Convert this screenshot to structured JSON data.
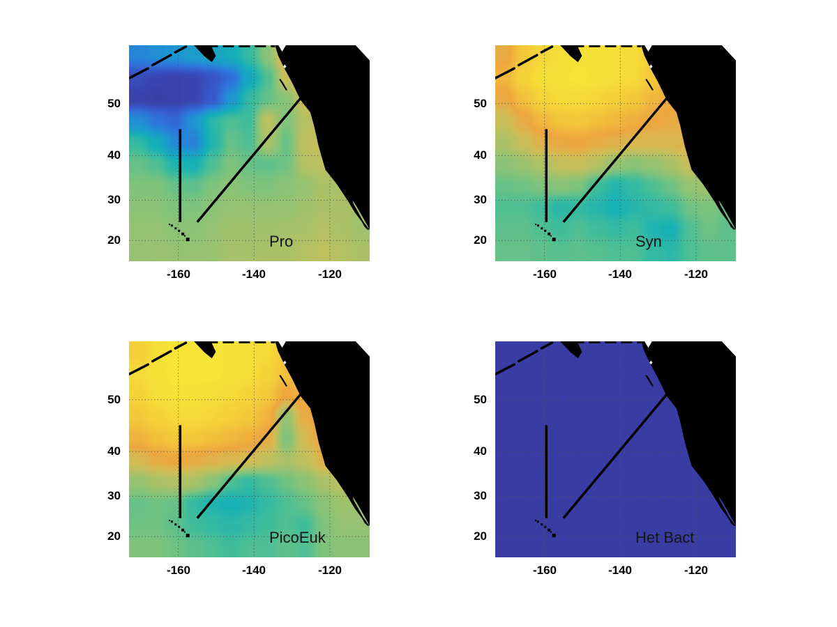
{
  "figure": {
    "background": "#ffffff"
  },
  "chart_data": {
    "type": "heatmap",
    "layout": "2x2 geographic subplots (North Pacific Ocean), MATLAB-style figure",
    "projection": "mercator",
    "lon_range": [
      -173,
      -109.5
    ],
    "lat_range": [
      14.6,
      59.2
    ],
    "xticks": [
      -160,
      -140,
      -120
    ],
    "yticks": [
      50,
      40,
      30,
      20
    ],
    "xtick_labels": [
      "-160",
      "-140",
      "-120"
    ],
    "ytick_labels": [
      "50",
      "40",
      "30",
      "20"
    ],
    "grid": true,
    "grid_style": "dotted",
    "land_color": "#000000",
    "nodata_color": "#ffffff",
    "track_color": "#000000",
    "colormap_stops": [
      [
        0.0,
        "#3a3191"
      ],
      [
        0.1,
        "#3853c6"
      ],
      [
        0.2,
        "#2f74dc"
      ],
      [
        0.3,
        "#1e96d2"
      ],
      [
        0.42,
        "#16b0b6"
      ],
      [
        0.5,
        "#3fbd9b"
      ],
      [
        0.58,
        "#7fc37c"
      ],
      [
        0.66,
        "#abc168"
      ],
      [
        0.74,
        "#d2bc55"
      ],
      [
        0.82,
        "#eea63f"
      ],
      [
        0.9,
        "#f3c83a"
      ],
      [
        1.0,
        "#f7ec36"
      ]
    ],
    "cruise_tracks": [
      {
        "from": [
          -159.5,
          45.3
        ],
        "to": [
          -159.5,
          24.7
        ]
      },
      {
        "from": [
          -127.0,
          51.5
        ],
        "to": [
          -155.0,
          24.7
        ]
      }
    ],
    "panels": [
      {
        "label": "Pro",
        "values": [
          [
            0.25,
            0.28,
            0.3,
            0.33,
            0.36,
            0.4,
            0.48,
            0.6,
            0.8,
            0.82,
            0.75,
            0.7,
            0.7
          ],
          [
            0.08,
            0.06,
            0.05,
            0.06,
            0.1,
            0.18,
            0.38,
            0.52,
            0.72,
            0.8,
            0.72,
            0.7,
            0.7
          ],
          [
            0.05,
            0.04,
            0.05,
            0.06,
            0.12,
            0.3,
            0.48,
            0.55,
            0.6,
            0.74,
            0.72,
            0.68,
            0.66
          ],
          [
            0.28,
            0.2,
            0.16,
            0.3,
            0.46,
            0.52,
            0.5,
            0.7,
            0.58,
            0.68,
            0.72,
            0.66,
            0.64
          ],
          [
            0.48,
            0.4,
            0.26,
            0.24,
            0.44,
            0.55,
            0.52,
            0.66,
            0.55,
            0.7,
            0.72,
            0.66,
            0.64
          ],
          [
            0.55,
            0.52,
            0.44,
            0.42,
            0.52,
            0.58,
            0.55,
            0.54,
            0.56,
            0.68,
            0.7,
            0.66,
            0.64
          ],
          [
            0.58,
            0.58,
            0.55,
            0.54,
            0.58,
            0.6,
            0.58,
            0.58,
            0.6,
            0.62,
            0.66,
            0.66,
            0.64
          ],
          [
            0.6,
            0.6,
            0.58,
            0.58,
            0.6,
            0.62,
            0.62,
            0.62,
            0.62,
            0.64,
            0.66,
            0.66,
            0.64
          ],
          [
            0.62,
            0.62,
            0.6,
            0.6,
            0.62,
            0.64,
            0.64,
            0.64,
            0.65,
            0.66,
            0.68,
            0.66,
            0.64
          ],
          [
            0.62,
            0.63,
            0.62,
            0.62,
            0.63,
            0.65,
            0.65,
            0.66,
            0.66,
            0.68,
            0.7,
            0.68,
            0.66
          ]
        ]
      },
      {
        "label": "Syn",
        "values": [
          [
            0.8,
            0.9,
            0.94,
            0.96,
            0.97,
            0.97,
            0.96,
            0.95,
            0.92,
            0.88,
            0.85,
            0.82,
            0.82
          ],
          [
            0.86,
            0.93,
            0.96,
            0.97,
            0.98,
            0.97,
            0.96,
            0.95,
            0.9,
            0.86,
            0.84,
            0.82,
            0.82
          ],
          [
            0.8,
            0.88,
            0.93,
            0.95,
            0.95,
            0.94,
            0.92,
            0.9,
            0.86,
            0.84,
            0.82,
            0.8,
            0.8
          ],
          [
            0.72,
            0.8,
            0.86,
            0.89,
            0.9,
            0.88,
            0.86,
            0.84,
            0.82,
            0.8,
            0.8,
            0.78,
            0.78
          ],
          [
            0.66,
            0.72,
            0.78,
            0.81,
            0.82,
            0.8,
            0.78,
            0.76,
            0.76,
            0.76,
            0.78,
            0.76,
            0.76
          ],
          [
            0.6,
            0.63,
            0.67,
            0.71,
            0.72,
            0.68,
            0.62,
            0.6,
            0.62,
            0.66,
            0.72,
            0.72,
            0.7
          ],
          [
            0.55,
            0.56,
            0.58,
            0.6,
            0.58,
            0.5,
            0.45,
            0.48,
            0.52,
            0.56,
            0.62,
            0.64,
            0.62
          ],
          [
            0.52,
            0.52,
            0.5,
            0.46,
            0.48,
            0.45,
            0.42,
            0.45,
            0.48,
            0.5,
            0.56,
            0.58,
            0.56
          ],
          [
            0.54,
            0.54,
            0.52,
            0.5,
            0.52,
            0.5,
            0.48,
            0.5,
            0.44,
            0.42,
            0.52,
            0.56,
            0.54
          ],
          [
            0.55,
            0.55,
            0.54,
            0.53,
            0.54,
            0.53,
            0.52,
            0.52,
            0.48,
            0.46,
            0.52,
            0.54,
            0.54
          ]
        ]
      },
      {
        "label": "PicoEuk",
        "values": [
          [
            0.92,
            0.96,
            0.98,
            0.98,
            0.98,
            0.97,
            0.96,
            0.95,
            0.9,
            0.86,
            0.86,
            0.86,
            0.86
          ],
          [
            0.95,
            0.97,
            0.98,
            0.98,
            0.98,
            0.97,
            0.96,
            0.93,
            0.88,
            0.86,
            0.85,
            0.85,
            0.85
          ],
          [
            0.93,
            0.96,
            0.97,
            0.97,
            0.96,
            0.95,
            0.93,
            0.9,
            0.82,
            0.85,
            0.85,
            0.85,
            0.85
          ],
          [
            0.9,
            0.93,
            0.95,
            0.95,
            0.94,
            0.92,
            0.9,
            0.85,
            0.62,
            0.8,
            0.85,
            0.85,
            0.85
          ],
          [
            0.85,
            0.88,
            0.9,
            0.9,
            0.88,
            0.86,
            0.84,
            0.8,
            0.58,
            0.75,
            0.82,
            0.84,
            0.84
          ],
          [
            0.75,
            0.8,
            0.82,
            0.8,
            0.78,
            0.76,
            0.74,
            0.7,
            0.66,
            0.7,
            0.78,
            0.8,
            0.8
          ],
          [
            0.62,
            0.66,
            0.68,
            0.66,
            0.6,
            0.52,
            0.48,
            0.52,
            0.56,
            0.6,
            0.66,
            0.7,
            0.7
          ],
          [
            0.55,
            0.56,
            0.55,
            0.48,
            0.44,
            0.42,
            0.44,
            0.48,
            0.52,
            0.55,
            0.6,
            0.64,
            0.64
          ],
          [
            0.56,
            0.56,
            0.54,
            0.5,
            0.48,
            0.46,
            0.48,
            0.5,
            0.52,
            0.5,
            0.58,
            0.62,
            0.62
          ],
          [
            0.58,
            0.58,
            0.56,
            0.54,
            0.52,
            0.5,
            0.52,
            0.52,
            0.54,
            0.52,
            0.58,
            0.6,
            0.6
          ]
        ]
      },
      {
        "label": "Het Bact",
        "uniform": 0.03
      }
    ]
  },
  "geography": {
    "mainland": [
      [
        -134.3,
        59.2
      ],
      [
        -133.5,
        57.8
      ],
      [
        -131.8,
        55.8
      ],
      [
        -129.8,
        53.6
      ],
      [
        -127.6,
        50.7
      ],
      [
        -125.0,
        48.5
      ],
      [
        -124.0,
        46.0
      ],
      [
        -122.8,
        42.0
      ],
      [
        -121.0,
        37.0
      ],
      [
        -118.0,
        33.8
      ],
      [
        -116.4,
        31.7
      ],
      [
        -115.0,
        29.8
      ],
      [
        -113.3,
        27.2
      ],
      [
        -111.3,
        24.7
      ],
      [
        -109.9,
        22.9
      ],
      [
        -110.7,
        23.6
      ],
      [
        -112.2,
        26.2
      ],
      [
        -113.9,
        29.0
      ],
      [
        -114.5,
        31.0
      ],
      [
        -112.8,
        28.6
      ],
      [
        -111.0,
        25.7
      ],
      [
        -109.6,
        23.3
      ],
      [
        -109.5,
        23.0
      ],
      [
        -109.5,
        59.2
      ]
    ],
    "islands": [
      [
        [
          -133.2,
          54.1
        ],
        [
          -132.0,
          52.9
        ],
        [
          -131.4,
          52.3
        ],
        [
          -132.5,
          53.5
        ]
      ],
      [
        [
          -155.6,
          59.2
        ],
        [
          -153.0,
          57.7
        ],
        [
          -151.2,
          56.9
        ],
        [
          -150.3,
          57.7
        ],
        [
          -151.6,
          59.2
        ]
      ]
    ],
    "aleutian_segments": [
      [
        [
          -172.9,
          54.3
        ],
        [
          -168.0,
          55.8
        ]
      ],
      [
        [
          -166.8,
          56.3
        ],
        [
          -162.0,
          57.8
        ]
      ],
      [
        [
          -160.8,
          58.2
        ],
        [
          -158.0,
          59.0
        ]
      ]
    ],
    "top_coast_segment": [
      [
        -152.5,
        59.1
      ],
      [
        -134.5,
        59.1
      ]
    ],
    "white_patches": [
      [
        [
          -113.2,
          59.2
        ],
        [
          -109.5,
          59.2
        ],
        [
          -109.5,
          57.0
        ]
      ],
      [
        [
          -133.6,
          59.2
        ],
        [
          -131.6,
          59.2
        ],
        [
          -132.6,
          58.3
        ]
      ],
      [
        [
          -131.9,
          56.4
        ],
        [
          -131.5,
          56.1
        ],
        [
          -131.9,
          55.8
        ],
        [
          -132.3,
          56.1
        ]
      ]
    ],
    "hawaii": [
      [
        -162.3,
        24.1,
        2
      ],
      [
        -161.7,
        23.8,
        3
      ],
      [
        -160.7,
        23.1,
        3
      ],
      [
        -159.8,
        22.5,
        3
      ],
      [
        -158.8,
        21.7,
        4
      ],
      [
        -158.3,
        21.2,
        2
      ],
      [
        -157.5,
        20.3,
        5
      ]
    ]
  }
}
